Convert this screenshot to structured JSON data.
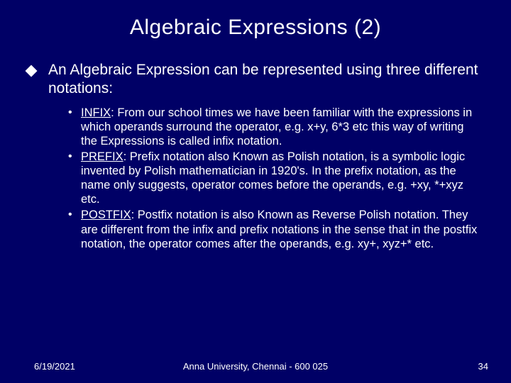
{
  "title": "Algebraic Expressions (2)",
  "main_bullet": "An Algebraic Expression can be represented using three different notations:",
  "items": [
    {
      "label": "INFIX",
      "text": ": From our school times we have been familiar with the expressions in which operands surround the operator, e.g. x+y, 6*3 etc this way of writing the Expressions is called infix notation."
    },
    {
      "label": "PREFIX",
      "text": ": Prefix notation also Known as Polish notation, is a symbolic logic invented by Polish mathematician in 1920's. In the prefix notation, as the name only suggests, operator comes before the operands, e.g. +xy, *+xyz etc."
    },
    {
      "label": "POSTFIX",
      "text": ": Postfix notation is also Known as Reverse Polish notation. They are different from the infix and prefix notations in the sense that in the postfix notation, the operator comes after the operands, e.g. xy+, xyz+* etc."
    }
  ],
  "footer": {
    "date": "6/19/2021",
    "org": "Anna University, Chennai - 600 025",
    "page": "34"
  },
  "colors": {
    "background": "#000066",
    "text": "#ffffff"
  }
}
